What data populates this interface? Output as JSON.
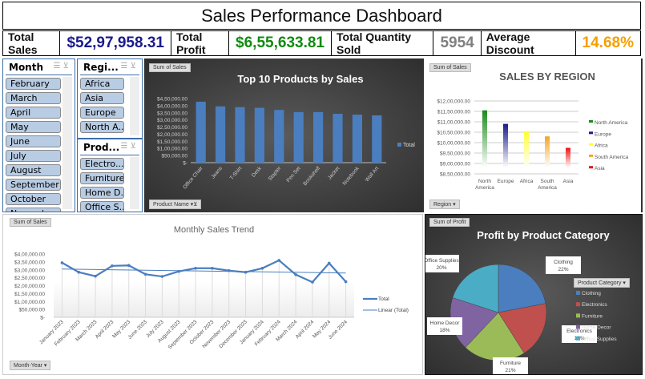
{
  "title": "Sales Performance Dashboard",
  "kpis": [
    {
      "label": "Total Sales",
      "value": "$52,97,958.31",
      "color": "#1a1a8c"
    },
    {
      "label": "Total Profit",
      "value": "$6,55,633.81",
      "color": "#118a11"
    },
    {
      "label": "Total Quantity Sold",
      "value": "5954",
      "color": "#808080"
    },
    {
      "label": "Average Discount",
      "value": "14.68%",
      "color": "#f5a000"
    }
  ],
  "slicers": {
    "month": {
      "title": "Month",
      "items": [
        "February",
        "March",
        "April",
        "May",
        "June",
        "July",
        "August",
        "September",
        "October",
        "November"
      ]
    },
    "region": {
      "title": "Regi...",
      "items": [
        "Africa",
        "Asia",
        "Europe",
        "North A..."
      ]
    },
    "product": {
      "title": "Prod...",
      "items": [
        "Electro...",
        "Furniture",
        "Home D...",
        "Office S..."
      ]
    }
  },
  "chart_data": [
    {
      "type": "bar",
      "title": "Top 10 Products by Sales",
      "field_button": "Sum of Sales",
      "axis_button": "Product Name",
      "legend": "Total",
      "categories": [
        "Office Chair",
        "Jeans",
        "T-Shirt",
        "Desk",
        "Stapler",
        "Pen Set",
        "Bookshelf",
        "Jacket",
        "Notebook",
        "Wall Art"
      ],
      "values": [
        428000,
        395000,
        390000,
        385000,
        370000,
        355000,
        355000,
        343000,
        337000,
        332000
      ],
      "ylim": [
        0,
        450000
      ],
      "yticks": [
        "$-",
        "$50,000.00",
        "$1,00,000.00",
        "$1,50,000.00",
        "$2,00,000.00",
        "$2,50,000.00",
        "$3,00,000.00",
        "$3,50,000.00",
        "$4,00,000.00",
        "$4,50,000.00"
      ]
    },
    {
      "type": "bar",
      "title": "SALES BY REGION",
      "field_button": "Sum of Sales",
      "axis_button": "Region",
      "categories": [
        "North America",
        "Europe",
        "Africa",
        "South America",
        "Asia"
      ],
      "values": [
        1155000,
        1090000,
        1055000,
        1030000,
        975000
      ],
      "colors": [
        "#1a8a1a",
        "#1a1a8c",
        "#ffff33",
        "#f5a623",
        "#ee1111"
      ],
      "ylim": [
        850000,
        1200000
      ],
      "yticks": [
        "$8,50,000.00",
        "$9,00,000.00",
        "$9,50,000.00",
        "$10,00,000.00",
        "$10,50,000.00",
        "$11,00,000.00",
        "$11,50,000.00",
        "$12,00,000.00"
      ]
    },
    {
      "type": "line",
      "title": "Monthly Sales Trend",
      "field_button": "Sum of Sales",
      "axis_button": "Month-Year",
      "legend": [
        "Total",
        "Linear (Total)"
      ],
      "categories": [
        "January 2023",
        "February 2023",
        "March 2023",
        "April 2023",
        "May 2023",
        "June 2023",
        "July 2023",
        "August 2023",
        "September 2023",
        "October 2023",
        "November 2023",
        "December 2023",
        "January 2024",
        "February 2024",
        "March 2024",
        "April 2024",
        "May 2024",
        "June 2024"
      ],
      "values": [
        345000,
        285000,
        260000,
        325000,
        328000,
        272000,
        258000,
        290000,
        310000,
        310000,
        295000,
        285000,
        310000,
        360000,
        270000,
        222000,
        342000,
        225000
      ],
      "trend": [
        305000,
        280000
      ],
      "ylim": [
        0,
        400000
      ],
      "yticks": [
        "$-",
        "$50,000.00",
        "$1,00,000.00",
        "$1,50,000.00",
        "$2,00,000.00",
        "$2,50,000.00",
        "$3,00,000.00",
        "$3,50,000.00",
        "$4,00,000.00"
      ]
    },
    {
      "type": "pie",
      "title": "Profit by Product Category",
      "field_button": "Sum of Profit",
      "legend_title": "Product Category",
      "categories": [
        "Clothing",
        "Electronics",
        "Furniture",
        "Home Decor",
        "Office Supplies"
      ],
      "values": [
        22,
        19,
        21,
        18,
        20
      ],
      "labels": [
        "22%",
        "19%",
        "21%",
        "18%",
        "20%"
      ],
      "colors": [
        "#4a7ebf",
        "#c0504d",
        "#9bbb59",
        "#8064a2",
        "#4bacc6"
      ]
    }
  ]
}
